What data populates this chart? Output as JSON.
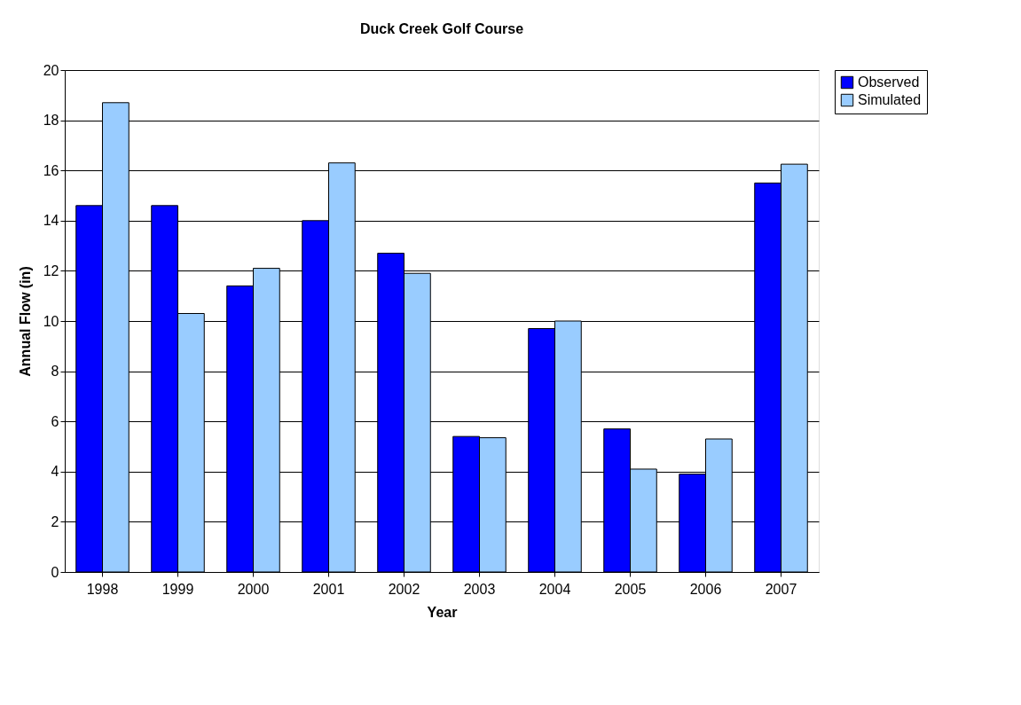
{
  "chart_data": {
    "type": "bar",
    "title": "Duck Creek Golf Course",
    "xlabel": "Year",
    "ylabel": "Annual Flow (in)",
    "categories": [
      "1998",
      "1999",
      "2000",
      "2001",
      "2002",
      "2003",
      "2004",
      "2005",
      "2006",
      "2007"
    ],
    "series": [
      {
        "name": "Observed",
        "color": "#0000ff",
        "values": [
          14.6,
          14.6,
          11.4,
          14.0,
          12.7,
          5.4,
          9.7,
          5.7,
          3.9,
          15.5
        ]
      },
      {
        "name": "Simulated",
        "color": "#99ccff",
        "values": [
          18.7,
          10.3,
          12.1,
          16.3,
          11.9,
          5.35,
          10.0,
          4.1,
          5.3,
          16.25
        ]
      }
    ],
    "ylim": [
      0,
      20
    ],
    "yticks": [
      0,
      2,
      4,
      6,
      8,
      10,
      12,
      14,
      16,
      18,
      20
    ],
    "grid": "y",
    "legend": "right"
  }
}
